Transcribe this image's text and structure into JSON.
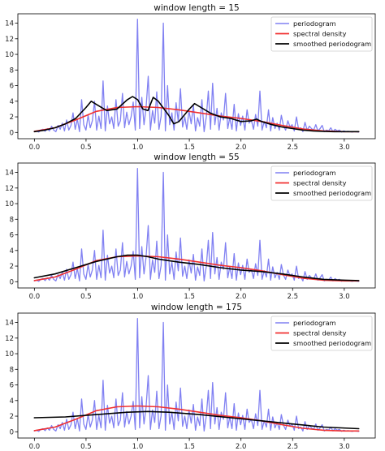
{
  "chart_data": [
    {
      "type": "line",
      "title": "window length = 15",
      "xlabel": "",
      "ylabel": "",
      "xlim": [
        -0.16,
        3.3
      ],
      "ylim": [
        -0.8,
        15.2
      ],
      "xticks": [
        "0.0",
        "0.5",
        "1.0",
        "1.5",
        "2.0",
        "2.5",
        "3.0"
      ],
      "yticks": [
        "0",
        "2",
        "4",
        "6",
        "8",
        "10",
        "12",
        "14"
      ],
      "legend_position": "top-right",
      "legend": [
        "periodogram",
        "spectral density",
        "smoothed periodogram"
      ],
      "series": [
        {
          "name": "periodogram",
          "color": "#6b6bf0",
          "style": "periodogram",
          "x": [],
          "y": []
        },
        {
          "name": "spectral density",
          "color": "#f03030",
          "x": [
            0.0,
            0.2,
            0.4,
            0.6,
            0.8,
            1.0,
            1.2,
            1.4,
            1.6,
            1.8,
            2.0,
            2.2,
            2.4,
            2.6,
            2.8,
            3.0,
            3.14
          ],
          "y": [
            0.15,
            0.6,
            1.6,
            2.7,
            3.2,
            3.3,
            3.2,
            2.9,
            2.5,
            2.1,
            1.8,
            1.4,
            0.9,
            0.45,
            0.2,
            0.1,
            0.1
          ]
        },
        {
          "name": "smoothed periodogram",
          "color": "#000000",
          "x": [
            0.0,
            0.1,
            0.2,
            0.3,
            0.4,
            0.5,
            0.55,
            0.6,
            0.7,
            0.8,
            0.9,
            0.95,
            1.0,
            1.05,
            1.1,
            1.15,
            1.2,
            1.3,
            1.35,
            1.4,
            1.5,
            1.55,
            1.6,
            1.7,
            1.8,
            1.9,
            2.0,
            2.1,
            2.15,
            2.2,
            2.3,
            2.4,
            2.5,
            2.6,
            2.7,
            2.8,
            2.9,
            3.0,
            3.14
          ],
          "y": [
            0.1,
            0.3,
            0.6,
            1.1,
            1.8,
            3.2,
            4.0,
            3.6,
            2.8,
            3.0,
            4.2,
            4.6,
            4.2,
            3.0,
            2.8,
            4.5,
            4.0,
            2.2,
            1.1,
            1.4,
            3.0,
            3.7,
            3.3,
            2.5,
            2.0,
            1.8,
            1.4,
            1.5,
            1.7,
            1.4,
            1.0,
            0.7,
            0.5,
            0.3,
            0.2,
            0.15,
            0.1,
            0.1,
            0.1
          ]
        }
      ]
    },
    {
      "type": "line",
      "title": "window length = 55",
      "xlabel": "",
      "ylabel": "",
      "xlim": [
        -0.16,
        3.3
      ],
      "ylim": [
        -0.8,
        15.2
      ],
      "xticks": [
        "0.0",
        "0.5",
        "1.0",
        "1.5",
        "2.0",
        "2.5",
        "3.0"
      ],
      "yticks": [
        "0",
        "2",
        "4",
        "6",
        "8",
        "10",
        "12",
        "14"
      ],
      "legend_position": "top-right",
      "legend": [
        "periodogram",
        "spectral density",
        "smoothed periodogram"
      ],
      "series": [
        {
          "name": "periodogram",
          "color": "#6b6bf0",
          "style": "periodogram",
          "x": [],
          "y": []
        },
        {
          "name": "spectral density",
          "color": "#f03030",
          "x": [
            0.0,
            0.2,
            0.4,
            0.6,
            0.8,
            1.0,
            1.2,
            1.4,
            1.6,
            1.8,
            2.0,
            2.2,
            2.4,
            2.6,
            2.8,
            3.0,
            3.14
          ],
          "y": [
            0.15,
            0.6,
            1.6,
            2.7,
            3.2,
            3.3,
            3.2,
            2.9,
            2.5,
            2.1,
            1.8,
            1.4,
            0.9,
            0.45,
            0.2,
            0.1,
            0.1
          ]
        },
        {
          "name": "smoothed periodogram",
          "color": "#000000",
          "x": [
            0.0,
            0.2,
            0.4,
            0.6,
            0.8,
            0.9,
            1.0,
            1.1,
            1.2,
            1.4,
            1.6,
            1.8,
            2.0,
            2.2,
            2.4,
            2.6,
            2.8,
            3.0,
            3.14
          ],
          "y": [
            0.5,
            1.0,
            1.8,
            2.6,
            3.2,
            3.4,
            3.4,
            3.2,
            2.9,
            2.5,
            2.2,
            1.8,
            1.5,
            1.3,
            1.0,
            0.6,
            0.3,
            0.2,
            0.15
          ]
        }
      ]
    },
    {
      "type": "line",
      "title": "window length = 175",
      "xlabel": "",
      "ylabel": "",
      "xlim": [
        -0.16,
        3.3
      ],
      "ylim": [
        -0.8,
        15.2
      ],
      "xticks": [
        "0.0",
        "0.5",
        "1.0",
        "1.5",
        "2.0",
        "2.5",
        "3.0"
      ],
      "yticks": [
        "0",
        "2",
        "4",
        "6",
        "8",
        "10",
        "12",
        "14"
      ],
      "legend_position": "top-right",
      "legend": [
        "periodogram",
        "spectral density",
        "smoothed periodogram"
      ],
      "series": [
        {
          "name": "periodogram",
          "color": "#6b6bf0",
          "style": "periodogram",
          "x": [],
          "y": []
        },
        {
          "name": "spectral density",
          "color": "#f03030",
          "x": [
            0.0,
            0.2,
            0.4,
            0.6,
            0.8,
            1.0,
            1.2,
            1.4,
            1.6,
            1.8,
            2.0,
            2.2,
            2.4,
            2.6,
            2.8,
            3.0,
            3.14
          ],
          "y": [
            0.15,
            0.6,
            1.6,
            2.7,
            3.2,
            3.3,
            3.2,
            2.9,
            2.5,
            2.1,
            1.8,
            1.4,
            0.9,
            0.45,
            0.2,
            0.1,
            0.1
          ]
        },
        {
          "name": "smoothed periodogram",
          "color": "#000000",
          "x": [
            0.0,
            0.3,
            0.6,
            0.9,
            1.1,
            1.3,
            1.6,
            1.9,
            2.2,
            2.5,
            2.8,
            3.14
          ],
          "y": [
            1.8,
            1.9,
            2.2,
            2.5,
            2.6,
            2.5,
            2.2,
            1.8,
            1.4,
            1.0,
            0.6,
            0.4
          ]
        }
      ]
    }
  ],
  "periodogram_values": [
    0.1,
    0.2,
    0.05,
    0.3,
    0.4,
    0.15,
    0.5,
    0.2,
    0.8,
    0.3,
    0.1,
    0.9,
    0.4,
    1.2,
    0.2,
    1.6,
    0.3,
    0.9,
    2.5,
    0.4,
    1.7,
    0.1,
    4.2,
    1.0,
    0.3,
    2.2,
    0.6,
    1.5,
    4.0,
    0.3,
    2.1,
    0.5,
    6.6,
    0.2,
    3.4,
    1.1,
    2.0,
    0.5,
    4.2,
    0.8,
    1.5,
    5.0,
    0.6,
    2.6,
    1.0,
    2.0,
    3.9,
    0.3,
    14.5,
    0.5,
    4.5,
    1.0,
    3.1,
    7.2,
    0.3,
    2.8,
    1.2,
    5.2,
    0.4,
    2.1,
    14.0,
    0.2,
    6.0,
    1.0,
    2.5,
    0.3,
    3.8,
    1.4,
    5.6,
    0.7,
    2.0,
    0.4,
    2.8,
    1.1,
    3.5,
    0.2,
    1.9,
    0.8,
    4.2,
    0.1,
    2.0,
    5.3,
    0.4,
    6.3,
    1.0,
    3.1,
    0.3,
    2.5,
    1.6,
    5.0,
    0.5,
    1.9,
    0.4,
    3.6,
    0.2,
    2.4,
    0.9,
    2.1,
    0.3,
    2.9,
    1.2,
    1.6,
    0.4,
    2.3,
    0.8,
    5.3,
    0.3,
    1.4,
    0.6,
    2.9,
    0.2,
    1.9,
    0.5,
    1.2,
    0.3,
    2.2,
    0.8,
    0.3,
    1.5,
    0.7,
    1.0,
    0.2,
    2.0,
    0.4,
    0.6,
    0.1,
    1.3,
    0.3,
    0.8,
    0.5,
    0.3,
    1.0,
    0.2,
    0.5,
    0.9,
    0.1,
    0.3,
    0.2,
    0.6,
    0.1,
    0.4,
    0.2,
    0.3,
    0.05,
    0.2,
    0.1,
    0.15,
    0.1,
    0.05,
    0.1,
    0.08,
    0.05
  ]
}
